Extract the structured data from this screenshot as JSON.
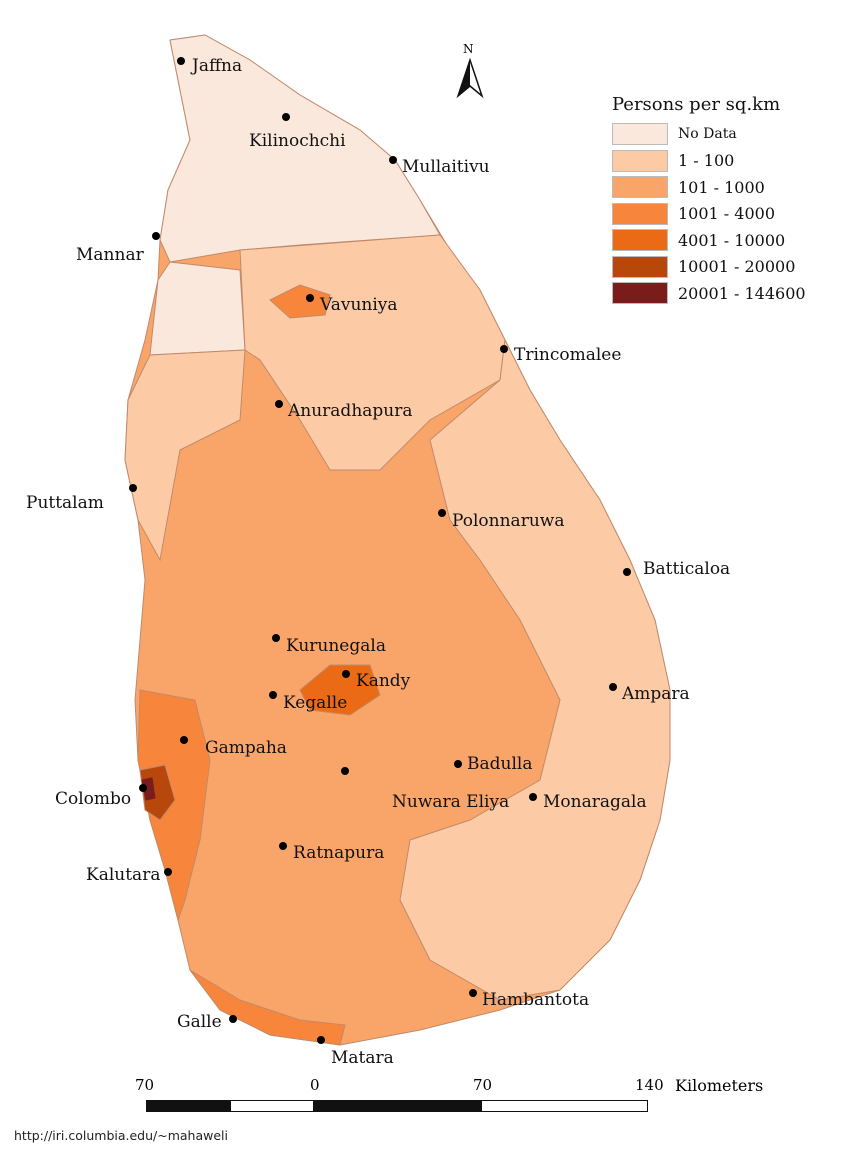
{
  "map": {
    "legend": {
      "title": "Persons per sq.km",
      "classes": [
        {
          "label": "No Data",
          "color": "#fbe8dc"
        },
        {
          "label": "1 - 100",
          "color": "#fccba6"
        },
        {
          "label": "101 - 1000",
          "color": "#f9a56a"
        },
        {
          "label": "1001 - 4000",
          "color": "#f7863c"
        },
        {
          "label": "4001 - 10000",
          "color": "#ea6a16"
        },
        {
          "label": "10001 - 20000",
          "color": "#b8470c"
        },
        {
          "label": "20001 - 144600",
          "color": "#7a1c1c"
        }
      ]
    },
    "cities": [
      {
        "name": "Jaffna"
      },
      {
        "name": "Kilinochchi"
      },
      {
        "name": "Mullaitivu"
      },
      {
        "name": "Mannar"
      },
      {
        "name": "Vavuniya"
      },
      {
        "name": "Trincomalee"
      },
      {
        "name": "Anuradhapura"
      },
      {
        "name": "Puttalam"
      },
      {
        "name": "Polonnaruwa"
      },
      {
        "name": "Batticaloa"
      },
      {
        "name": "Kurunegala"
      },
      {
        "name": "Kandy"
      },
      {
        "name": "Kegalle"
      },
      {
        "name": "Ampara"
      },
      {
        "name": "Gampaha"
      },
      {
        "name": "Badulla"
      },
      {
        "name": "Colombo"
      },
      {
        "name": "Nuwara Eliya"
      },
      {
        "name": "Monaragala"
      },
      {
        "name": "Ratnapura"
      },
      {
        "name": "Kalutara"
      },
      {
        "name": "Hambantota"
      },
      {
        "name": "Galle"
      },
      {
        "name": "Matara"
      }
    ],
    "north_arrow": "N",
    "scale_bar": {
      "ticks": [
        "70",
        "0",
        "70",
        "140"
      ],
      "units": "Kilometers"
    },
    "source_url": "http://iri.columbia.edu/~mahaweli"
  }
}
